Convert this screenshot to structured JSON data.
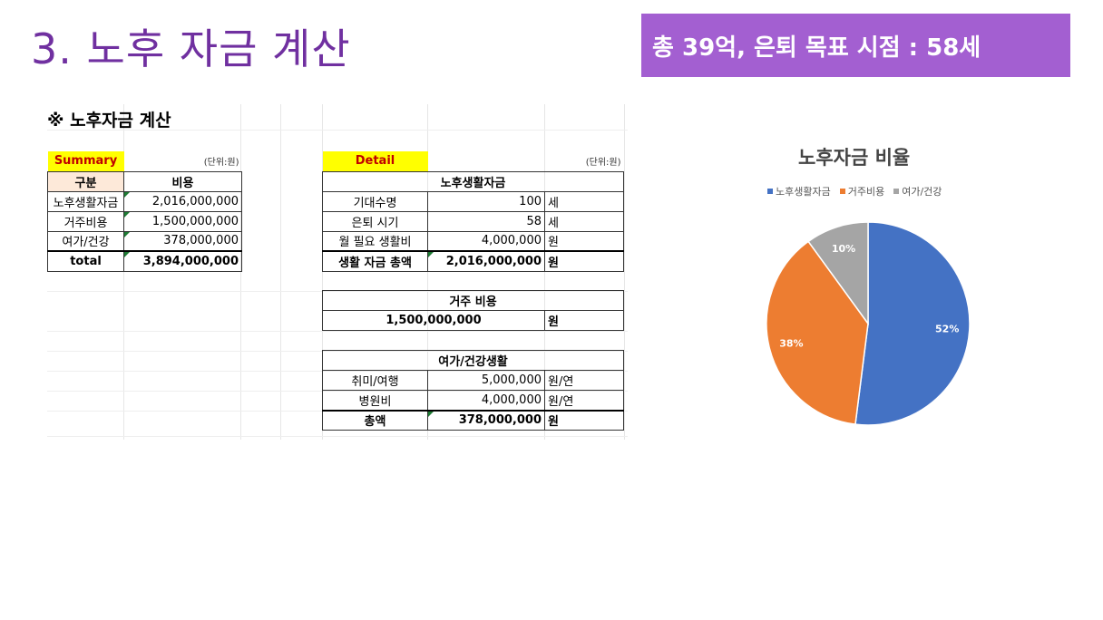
{
  "slide": {
    "title": "3. 노후 자금 계산",
    "banner": "총 39억, 은퇴 목표 시점  : 58세"
  },
  "sheet": {
    "heading": "※ 노후자금 계산",
    "summary": {
      "label": "Summary",
      "unit": "(단위:원)",
      "headers": [
        "구분",
        "비용"
      ],
      "rows": [
        {
          "name": "노후생활자금",
          "value": "2,016,000,000"
        },
        {
          "name": "거주비용",
          "value": "1,500,000,000"
        },
        {
          "name": "여가/건강",
          "value": "378,000,000"
        }
      ],
      "total_label": "total",
      "total_value": "3,894,000,000"
    },
    "detail": {
      "label": "Detail",
      "unit": "(단위:원)",
      "living": {
        "title": "노후생활자금",
        "rows": [
          {
            "name": "기대수명",
            "value": "100",
            "unit": "세"
          },
          {
            "name": "은퇴 시기",
            "value": "58",
            "unit": "세"
          },
          {
            "name": "월 필요 생활비",
            "value": "4,000,000",
            "unit": "원"
          }
        ],
        "total_name": "생활 자금 총액",
        "total_value": "2,016,000,000",
        "total_unit": "원"
      },
      "housing": {
        "title": "거주 비용",
        "value": "1,500,000,000",
        "unit": "원"
      },
      "leisure": {
        "title": "여가/건강생활",
        "rows": [
          {
            "name": "취미/여행",
            "value": "5,000,000",
            "unit": "원/연"
          },
          {
            "name": "병원비",
            "value": "4,000,000",
            "unit": "원/연"
          }
        ],
        "total_name": "총액",
        "total_value": "378,000,000",
        "total_unit": "원"
      }
    }
  },
  "chart_data": {
    "type": "pie",
    "title": "노후자금 비율",
    "categories": [
      "노후생활자금",
      "거주비용",
      "여가/건강"
    ],
    "values": [
      52,
      38,
      10
    ],
    "labels": [
      "52%",
      "38%",
      "10%"
    ],
    "colors": [
      "#4472c4",
      "#ed7d31",
      "#a5a5a5"
    ],
    "legend": "top"
  }
}
